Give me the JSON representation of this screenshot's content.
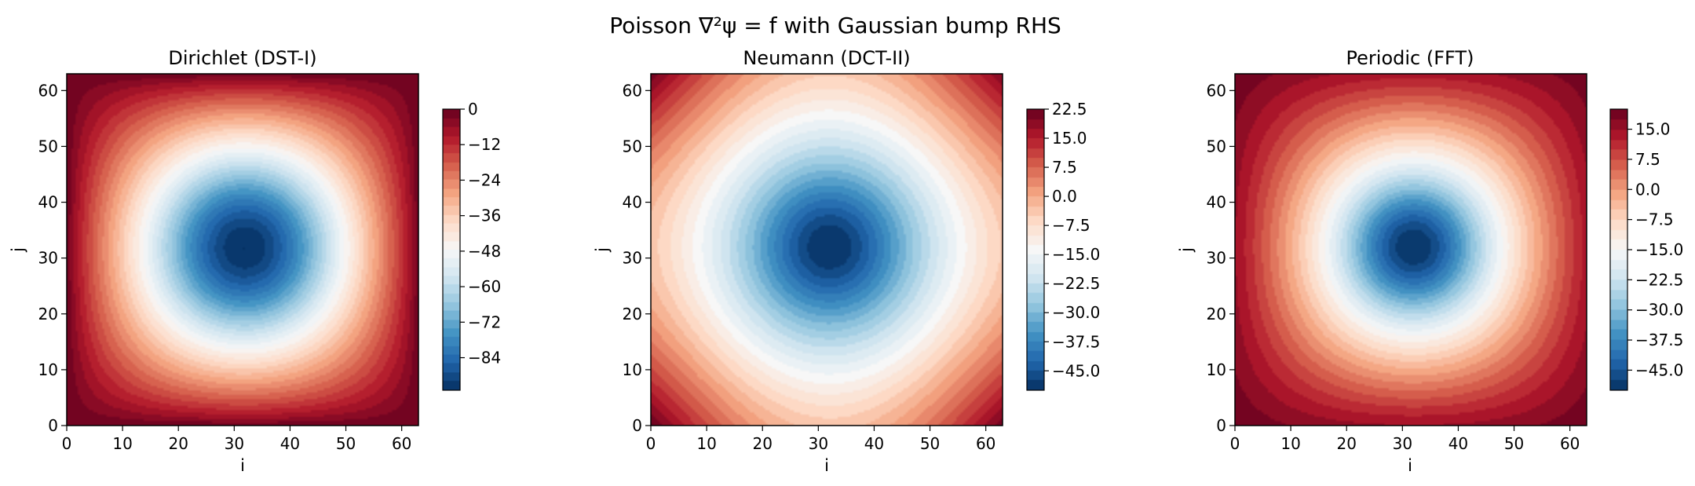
{
  "figure": {
    "title": "Poisson ∇²ψ = f with Gaussian bump RHS",
    "colormap": {
      "name": "RdBu_r",
      "stops": [
        "#053061",
        "#2166ac",
        "#4393c3",
        "#92c5de",
        "#d1e5f0",
        "#f7f7f7",
        "#fddbc7",
        "#f4a582",
        "#d6604d",
        "#b2182b",
        "#67001f"
      ]
    }
  },
  "chart_data": [
    {
      "type": "heatmap",
      "title": "Dirichlet (DST-I)",
      "xlabel": "i",
      "ylabel": "j",
      "xlim": [
        0,
        63
      ],
      "ylim": [
        0,
        63
      ],
      "xticks": [
        "0",
        "10",
        "20",
        "30",
        "40",
        "50",
        "60"
      ],
      "yticks": [
        "0",
        "10",
        "20",
        "30",
        "40",
        "50",
        "60"
      ],
      "field": {
        "kind": "dirichlet",
        "center": [
          32,
          32
        ],
        "min": -95,
        "max": 0
      },
      "levels": 32,
      "colorbar": {
        "range": [
          -95,
          0
        ],
        "ticks": [
          0,
          -12,
          -24,
          -36,
          -48,
          -60,
          -72,
          -84
        ],
        "tick_labels": [
          "0",
          "−12",
          "−24",
          "−36",
          "−48",
          "−60",
          "−72",
          "−84"
        ]
      }
    },
    {
      "type": "heatmap",
      "title": "Neumann (DCT-II)",
      "xlabel": "i",
      "ylabel": "j",
      "xlim": [
        0,
        63
      ],
      "ylim": [
        0,
        63
      ],
      "xticks": [
        "0",
        "10",
        "20",
        "30",
        "40",
        "50",
        "60"
      ],
      "yticks": [
        "0",
        "10",
        "20",
        "30",
        "40",
        "50",
        "60"
      ],
      "field": {
        "kind": "neumann",
        "center": [
          32,
          32
        ],
        "min": -50,
        "max": 22.5
      },
      "levels": 29,
      "colorbar": {
        "range": [
          -50,
          22.5
        ],
        "ticks": [
          22.5,
          15,
          7.5,
          0,
          -7.5,
          -15,
          -22.5,
          -30,
          -37.5,
          -45
        ],
        "tick_labels": [
          "22.5",
          "15.0",
          "7.5",
          "0.0",
          "−7.5",
          "−15.0",
          "−22.5",
          "−30.0",
          "−37.5",
          "−45.0"
        ]
      }
    },
    {
      "type": "heatmap",
      "title": "Periodic (FFT)",
      "xlabel": "i",
      "ylabel": "j",
      "xlim": [
        0,
        63
      ],
      "ylim": [
        0,
        63
      ],
      "xticks": [
        "0",
        "10",
        "20",
        "30",
        "40",
        "50",
        "60"
      ],
      "yticks": [
        "0",
        "10",
        "20",
        "30",
        "40",
        "50",
        "60"
      ],
      "field": {
        "kind": "periodic",
        "center": [
          32,
          32
        ],
        "min": -50,
        "max": 20
      },
      "levels": 28,
      "colorbar": {
        "range": [
          -50,
          20
        ],
        "ticks": [
          15,
          7.5,
          0,
          -7.5,
          -15,
          -22.5,
          -30,
          -37.5,
          -45
        ],
        "tick_labels": [
          "15.0",
          "7.5",
          "0.0",
          "−7.5",
          "−15.0",
          "−22.5",
          "−30.0",
          "−37.5",
          "−45.0"
        ]
      }
    }
  ]
}
